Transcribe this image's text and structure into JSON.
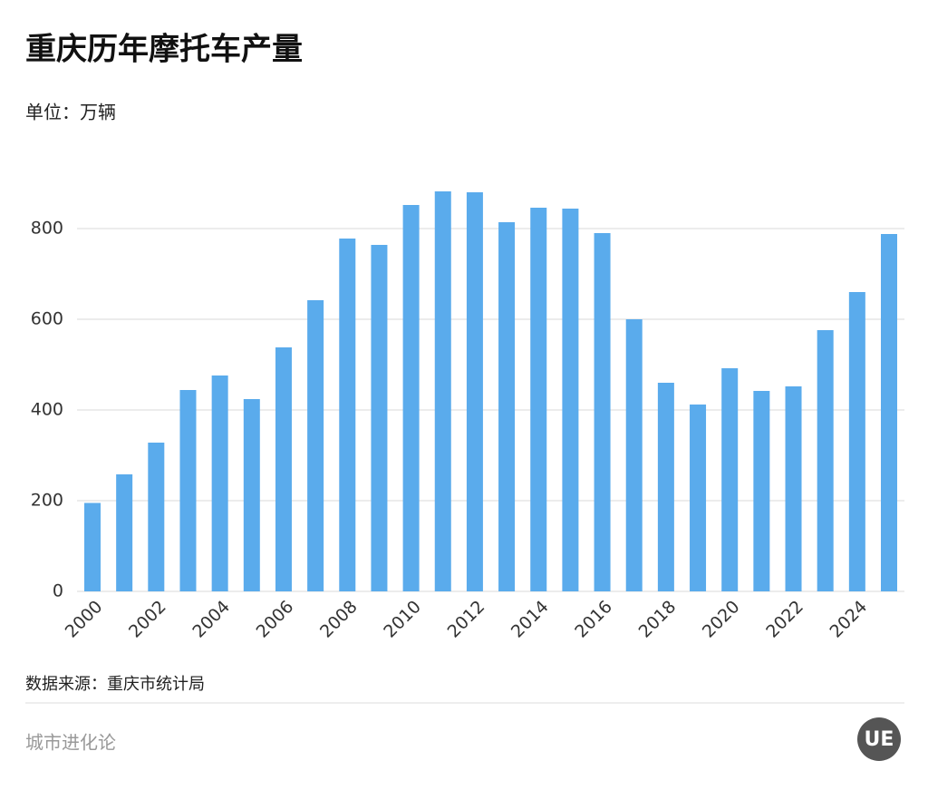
{
  "chart_data": {
    "type": "bar",
    "title": "重庆历年摩托车产量",
    "subtitle": "单位：万辆",
    "source": "数据来源：重庆市统计局",
    "footer": "城市进化论",
    "logo": "UE",
    "categories": [
      "2000",
      null,
      "2002",
      null,
      "2004",
      null,
      "2006",
      null,
      "2008",
      null,
      "2010",
      null,
      "2012",
      null,
      "2014",
      null,
      "2016",
      null,
      "2018",
      null,
      "2020",
      null,
      "2022",
      null,
      "2024",
      null
    ],
    "values": [
      195,
      258,
      328,
      444,
      476,
      424,
      538,
      642,
      778,
      764,
      852,
      882,
      880,
      814,
      846,
      844,
      790,
      600,
      460,
      412,
      492,
      442,
      452,
      576,
      660,
      788
    ],
    "color": "#5aabec",
    "ylim": [
      0,
      920
    ],
    "yticks": [
      0,
      200,
      400,
      600,
      800
    ],
    "grid": true
  }
}
